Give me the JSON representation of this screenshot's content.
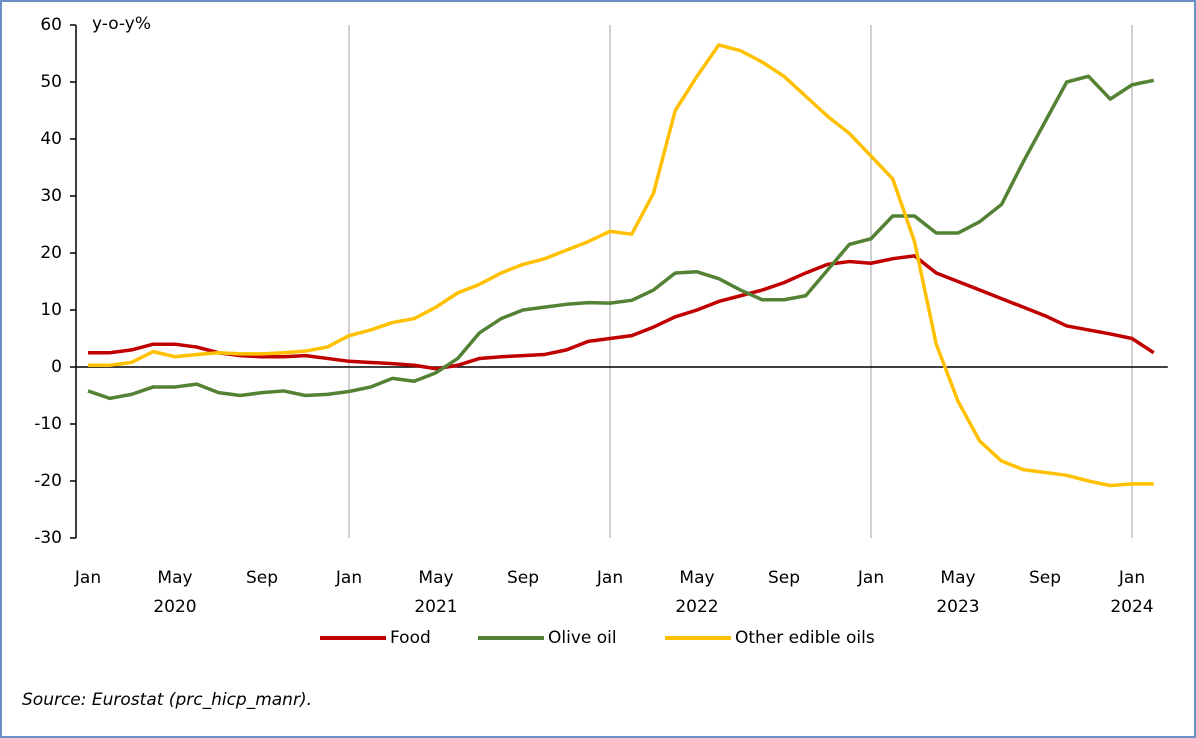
{
  "chart_data": {
    "type": "line",
    "y_axis_label": "y-o-y%",
    "source": "Source: Eurostat (prc_hicp_manr).",
    "categories": [
      "Jan",
      null,
      null,
      null,
      "May",
      null,
      null,
      null,
      "Sep",
      null,
      null,
      null,
      "Jan",
      null,
      null,
      null,
      "May",
      null,
      null,
      null,
      "Sep",
      null,
      null,
      null,
      "Jan",
      null,
      null,
      null,
      "May",
      null,
      null,
      null,
      "Sep",
      null,
      null,
      null,
      "Jan",
      null,
      null,
      null,
      "May",
      null,
      null,
      null,
      "Sep",
      null,
      null,
      null,
      "Jan",
      null
    ],
    "x_year_labels": [
      null,
      null,
      null,
      null,
      "2020",
      null,
      null,
      null,
      null,
      null,
      null,
      null,
      null,
      null,
      null,
      null,
      "2021",
      null,
      null,
      null,
      null,
      null,
      null,
      null,
      null,
      null,
      null,
      null,
      "2022",
      null,
      null,
      null,
      null,
      null,
      null,
      null,
      null,
      null,
      null,
      null,
      "2023",
      null,
      null,
      null,
      null,
      null,
      null,
      null,
      "2024",
      null
    ],
    "series": [
      {
        "name": "Food",
        "color": "#c00000",
        "values": [
          2.5,
          2.5,
          3,
          4,
          4,
          3.5,
          2.5,
          2,
          1.8,
          1.8,
          2,
          1.5,
          1,
          0.8,
          0.6,
          0.3,
          -0.3,
          0.3,
          1.5,
          1.8,
          2,
          2.2,
          3,
          4.5,
          5,
          5.5,
          7,
          8.8,
          10,
          11.5,
          12.5,
          13.5,
          14.8,
          16.5,
          18,
          18.5,
          18.2,
          19,
          19.5,
          16.5,
          15,
          13.5,
          12,
          10.5,
          9,
          7.2,
          6.5,
          5.8,
          5,
          2.5
        ]
      },
      {
        "name": "Olive oil",
        "color": "#548235",
        "values": [
          -4.2,
          -5.5,
          -4.8,
          -3.5,
          -3.5,
          -3,
          -4.5,
          -5,
          -4.5,
          -4.2,
          -5,
          -4.8,
          -4.3,
          -3.5,
          -2,
          -2.5,
          -1,
          1.5,
          6,
          8.5,
          10,
          10.5,
          11,
          11.3,
          11.2,
          11.7,
          13.5,
          16.5,
          16.7,
          15.5,
          13.5,
          11.8,
          11.8,
          12.5,
          17,
          21.5,
          22.5,
          26.5,
          26.5,
          23.5,
          23.5,
          25.5,
          28.5,
          36,
          43,
          50,
          51,
          47,
          49.5,
          50.3
        ]
      },
      {
        "name": "Other edible oils",
        "color": "#ffc000",
        "values": [
          0.3,
          0.3,
          0.8,
          2.7,
          1.8,
          2.2,
          2.5,
          2.3,
          2.3,
          2.5,
          2.8,
          3.5,
          5.5,
          6.5,
          7.8,
          8.5,
          10.5,
          13,
          14.5,
          16.5,
          18,
          19,
          20.5,
          22,
          23.8,
          23.3,
          30.5,
          45,
          51,
          56.5,
          55.5,
          53.5,
          51,
          47.5,
          44,
          41,
          37,
          33,
          22,
          4,
          -6,
          -13,
          -16.5,
          -18,
          -18.5,
          -19,
          -20,
          -20.8,
          -20.5,
          -20.5
        ]
      }
    ],
    "ylim": [
      -30,
      60
    ],
    "yticks": [
      -30,
      -20,
      -10,
      0,
      10,
      20,
      30,
      40,
      50,
      60
    ],
    "legend": "bottom"
  }
}
